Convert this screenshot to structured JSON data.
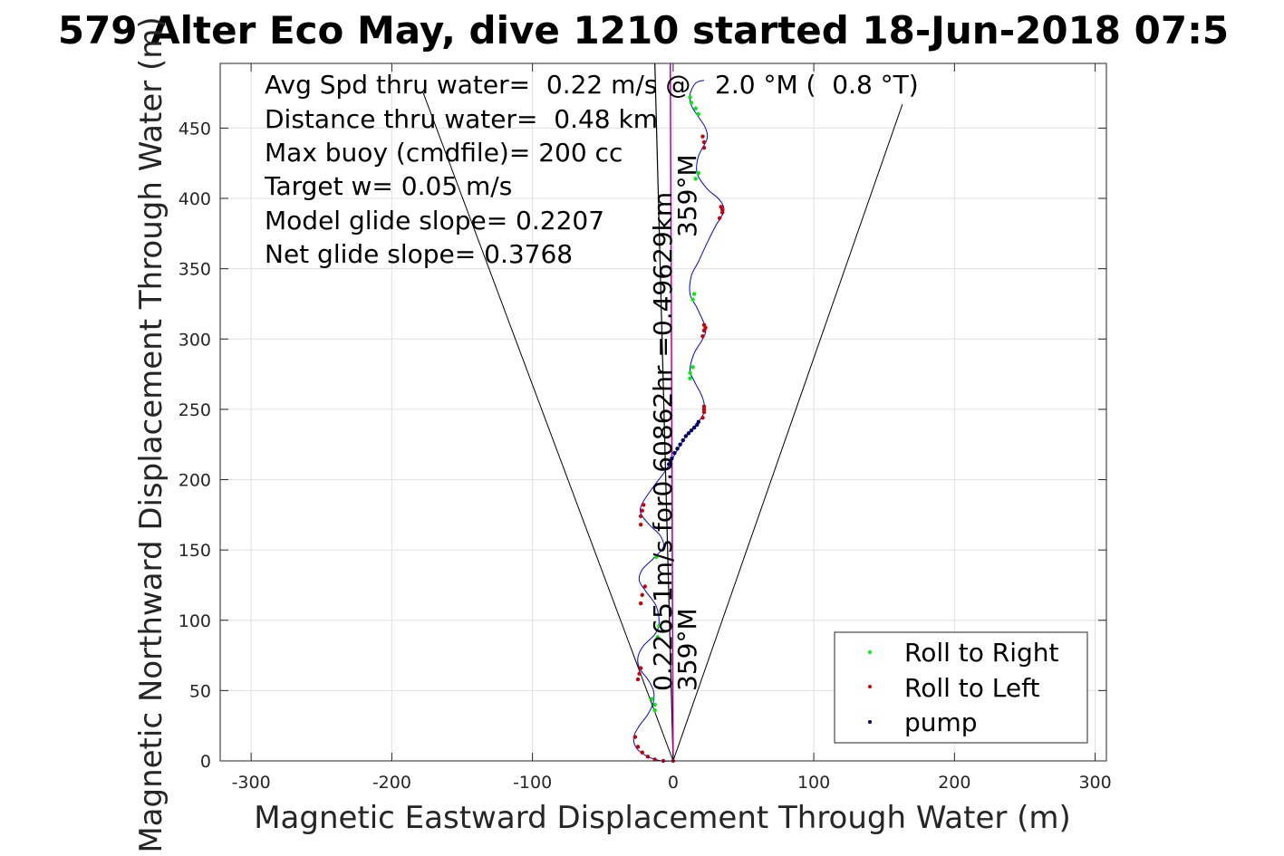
{
  "title": "579 Alter Eco May, dive 1210 started 18-Jun-2018 07:5",
  "colors": {
    "track": "#0000ff",
    "roll_right": "#00ee00",
    "roll_left": "#cc0000",
    "pump": "#000066",
    "avg_heading": "#b000b0",
    "grid": "#e0e0e0"
  },
  "chart_data": {
    "type": "scatter",
    "title": "579 Alter Eco May, dive 1210 started 18-Jun-2018 07:5",
    "xlabel": "Magnetic Eastward Displacement Through Water (m)",
    "ylabel": "Magnetic Northward Displacement Through Water (m)",
    "xlim": [
      -322,
      308
    ],
    "ylim": [
      0,
      496
    ],
    "xticks": [
      -300,
      -200,
      -100,
      0,
      100,
      200,
      300
    ],
    "yticks": [
      0,
      50,
      100,
      150,
      200,
      250,
      300,
      350,
      400,
      450
    ],
    "xtick_labels": [
      "-300",
      "-200",
      "-100",
      "0",
      "100",
      "200",
      "300"
    ],
    "ytick_labels": [
      "0",
      "50",
      "100",
      "150",
      "200",
      "250",
      "300",
      "350",
      "400",
      "450"
    ],
    "grid": true,
    "legend_position": "bottom-right",
    "legend": [
      "Roll to Right",
      "Roll to Left",
      "pump"
    ],
    "track": {
      "x": [
        0,
        -8,
        -18,
        -26,
        -28,
        -24,
        -18,
        -14,
        -14,
        -18,
        -24,
        -25,
        -21,
        -13,
        -10,
        -12,
        -19,
        -24,
        -22,
        -14,
        -7,
        -9,
        -17,
        -23,
        -22,
        -14,
        -5,
        3,
        10,
        17,
        22,
        21,
        15,
        12,
        15,
        21,
        23,
        17,
        12,
        13,
        18,
        24,
        30,
        36,
        33,
        24,
        17,
        18,
        24,
        23,
        18,
        13,
        12,
        16,
        22
      ],
      "y": [
        0,
        0,
        3,
        9,
        17,
        25,
        33,
        42,
        50,
        58,
        66,
        74,
        82,
        90,
        98,
        110,
        120,
        128,
        136,
        144,
        152,
        160,
        168,
        176,
        183,
        195,
        207,
        221,
        232,
        240,
        248,
        258,
        270,
        278,
        290,
        300,
        308,
        322,
        332,
        345,
        355,
        368,
        380,
        391,
        399,
        407,
        418,
        430,
        442,
        450,
        458,
        466,
        474,
        482,
        484
      ]
    },
    "roll_right_points": {
      "x": [
        -13,
        -13,
        -15,
        -11,
        -10,
        -12,
        12,
        12,
        14,
        14,
        15,
        16,
        18,
        18,
        16,
        13,
        12
      ],
      "y": [
        36,
        40,
        44,
        88,
        96,
        145,
        272,
        276,
        280,
        328,
        332,
        414,
        418,
        460,
        464,
        468,
        472
      ]
    },
    "roll_left_points": {
      "x": [
        -27,
        -25,
        -22,
        -18,
        -13,
        -7,
        0,
        -25,
        -24,
        -23,
        -23,
        -22,
        -20,
        -23,
        -23,
        -22,
        -21,
        21,
        22,
        22,
        22,
        21,
        22,
        23,
        22,
        33,
        35,
        35,
        34,
        22,
        22,
        21
      ],
      "y": [
        17,
        10,
        6,
        3,
        1,
        0,
        0,
        58,
        62,
        66,
        112,
        118,
        124,
        168,
        174,
        178,
        182,
        244,
        248,
        250,
        252,
        302,
        306,
        308,
        310,
        386,
        390,
        392,
        394,
        436,
        440,
        444
      ]
    },
    "pump_points": {
      "x": [
        -3,
        -1,
        1,
        3,
        5,
        7,
        9,
        11,
        13,
        15,
        17,
        18
      ],
      "y": [
        211,
        215,
        219,
        222,
        225,
        228,
        231,
        233,
        235,
        237,
        239,
        241
      ]
    },
    "heading_lines": [
      {
        "x": [
          0,
          -13
        ],
        "y": [
          0,
          496
        ]
      },
      {
        "x": [
          0,
          -2
        ],
        "y": [
          0,
          496
        ]
      }
    ],
    "cone_lines": [
      {
        "x": [
          0,
          -178
        ],
        "y": [
          0,
          476
        ]
      },
      {
        "x": [
          0,
          163
        ],
        "y": [
          0,
          467
        ]
      }
    ],
    "annotations": [
      "Avg Spd thru water=  0.22 m/s @   2.0 °M (  0.8 °T)",
      "Distance thru water=  0.48 km",
      "Max buoy (cmdfile)= 200 cc",
      "Target w= 0.05 m/s",
      "Model glide slope= 0.2207",
      "Net glide slope= 0.3768"
    ],
    "rotated_labels": {
      "speed_line": "0.22651m/s for0.60862hr =0.49629km",
      "heading_top": "359°M",
      "heading_bottom": "359°M"
    }
  }
}
